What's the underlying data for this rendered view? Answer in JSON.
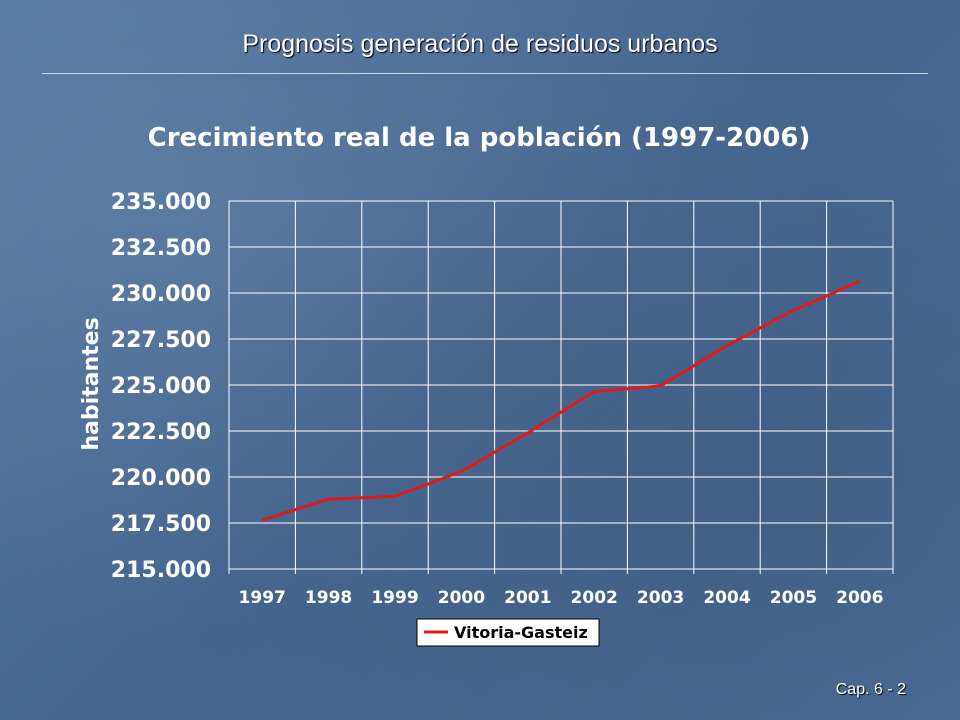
{
  "slide": {
    "header": "Prognosis generación de residuos urbanos",
    "page_label": "Cap. 6 - 2"
  },
  "colors": {
    "line": "#dd1b1b",
    "grid": "#ffffff",
    "text": "#ffffff",
    "legend_bg": "#ffffff",
    "legend_text": "#000000"
  },
  "chart_data": {
    "type": "line",
    "title": "Crecimiento real de la población (1997-2006)",
    "xlabel": "",
    "ylabel": "habitantes",
    "categories": [
      "1997",
      "1998",
      "1999",
      "2000",
      "2001",
      "2002",
      "2003",
      "2004",
      "2005",
      "2006"
    ],
    "series": [
      {
        "name": "Vitoria-Gasteiz",
        "values": [
          217650,
          218800,
          218950,
          220300,
          222400,
          224650,
          224950,
          227150,
          229050,
          230650
        ]
      }
    ],
    "ylim": [
      215000,
      235000
    ],
    "yticks": [
      215000,
      217500,
      220000,
      222500,
      225000,
      227500,
      230000,
      232500,
      235000
    ],
    "ytick_labels": [
      "215.000",
      "217.500",
      "220.000",
      "222.500",
      "225.000",
      "227.500",
      "230.000",
      "232.500",
      "235.000"
    ],
    "grid": true,
    "legend_position": "bottom"
  }
}
